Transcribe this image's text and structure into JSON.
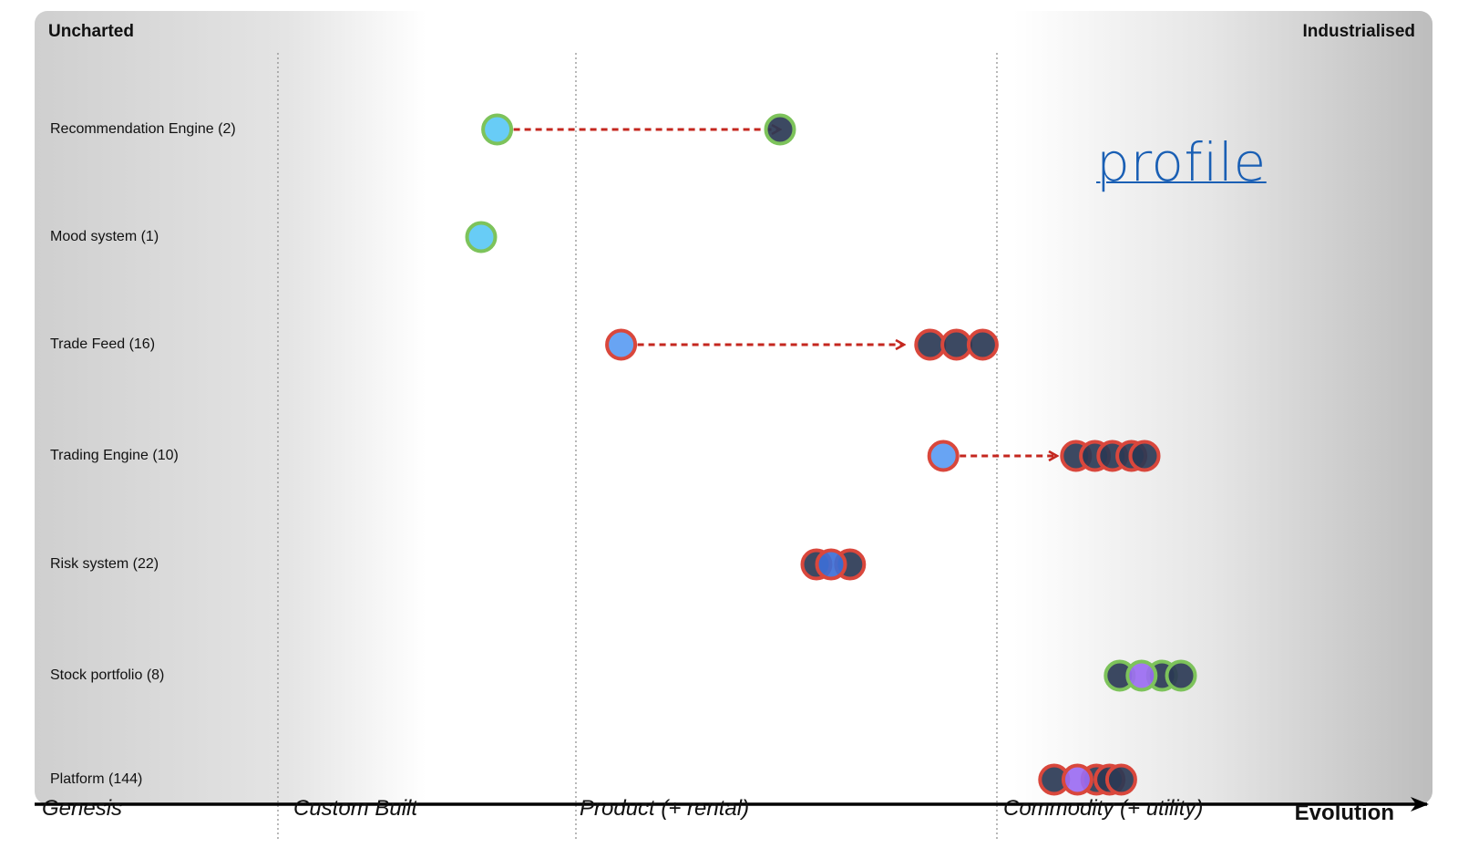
{
  "corners": {
    "left": "Uncharted",
    "right": "Industrialised"
  },
  "annotation": "profile",
  "axis": {
    "label": "Evolution",
    "stages": [
      "Genesis",
      "Custom Built",
      "Product (+ rental)",
      "Commodity (+ utility)"
    ]
  },
  "rows": [
    {
      "label": "Recommendation Engine (2)",
      "from": 0.341,
      "to": 0.535,
      "points": [
        {
          "x": 0.341,
          "fill": "#5bc8f5",
          "stroke": "#7dc35b"
        },
        {
          "x": 0.535,
          "fill": "#2b3a55",
          "stroke": "#7dc35b"
        }
      ]
    },
    {
      "label": "Mood system (1)",
      "points": [
        {
          "x": 0.33,
          "fill": "#5bc8f5",
          "stroke": "#7dc35b"
        }
      ]
    },
    {
      "label": "Trade Feed (16)",
      "from": 0.426,
      "to": 0.62,
      "points": [
        {
          "x": 0.426,
          "fill": "#5b9cf2",
          "stroke": "#d9473c"
        },
        {
          "x": 0.638,
          "fill": "#2b3a55",
          "stroke": "#d9473c"
        },
        {
          "x": 0.656,
          "fill": "#2b3a55",
          "stroke": "#d9473c"
        },
        {
          "x": 0.674,
          "fill": "#2b3a55",
          "stroke": "#d9473c"
        }
      ]
    },
    {
      "label": "Trading Engine (10)",
      "from": 0.647,
      "to": 0.725,
      "points": [
        {
          "x": 0.647,
          "fill": "#5b9cf2",
          "stroke": "#d9473c"
        },
        {
          "x": 0.738,
          "fill": "#2b3a55",
          "stroke": "#d9473c"
        },
        {
          "x": 0.751,
          "fill": "#2b3a55",
          "stroke": "#d9473c"
        },
        {
          "x": 0.763,
          "fill": "#2b3a55",
          "stroke": "#d9473c"
        },
        {
          "x": 0.776,
          "fill": "#2b3a55",
          "stroke": "#d9473c"
        },
        {
          "x": 0.785,
          "fill": "#2b3a55",
          "stroke": "#d9473c"
        }
      ]
    },
    {
      "label": "Risk system (22)",
      "points": [
        {
          "x": 0.56,
          "fill": "#2b3a55",
          "stroke": "#d9473c"
        },
        {
          "x": 0.583,
          "fill": "#2b3a55",
          "stroke": "#d9473c"
        },
        {
          "x": 0.57,
          "fill": "#3d6fd6",
          "stroke": "#d9473c"
        }
      ]
    },
    {
      "label": "Stock portfolio (8)",
      "points": [
        {
          "x": 0.768,
          "fill": "#2b3a55",
          "stroke": "#7dc35b"
        },
        {
          "x": 0.797,
          "fill": "#2b3a55",
          "stroke": "#7dc35b"
        },
        {
          "x": 0.81,
          "fill": "#2b3a55",
          "stroke": "#7dc35b"
        },
        {
          "x": 0.783,
          "fill": "#9b6df2",
          "stroke": "#7dc35b"
        }
      ]
    },
    {
      "label": "Platform (144)",
      "points": [
        {
          "x": 0.723,
          "fill": "#2b3a55",
          "stroke": "#d9473c"
        },
        {
          "x": 0.752,
          "fill": "#2b3a55",
          "stroke": "#d9473c"
        },
        {
          "x": 0.761,
          "fill": "#2b3a55",
          "stroke": "#d9473c"
        },
        {
          "x": 0.769,
          "fill": "#2b3a55",
          "stroke": "#d9473c"
        },
        {
          "x": 0.739,
          "fill": "#9b6df2",
          "stroke": "#d9473c"
        }
      ]
    }
  ],
  "colors": {
    "arrow": "#c4271f",
    "axis": "#000000",
    "divider": "#8a8a8a"
  }
}
